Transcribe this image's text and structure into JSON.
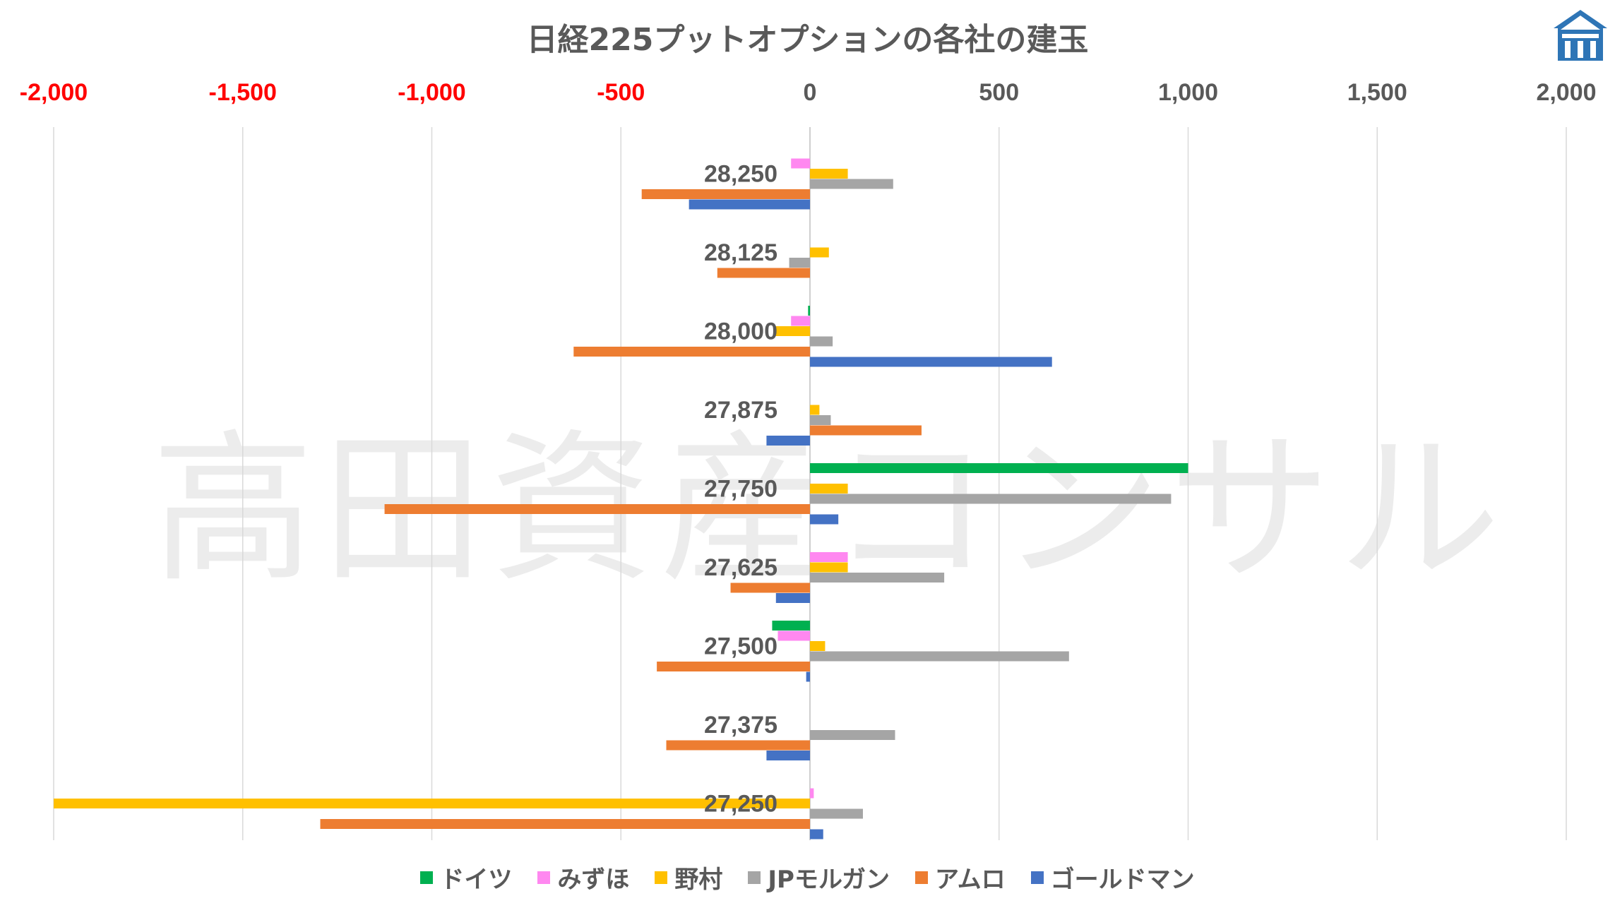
{
  "page": {
    "title": "日経225プットオプションの各社の建玉",
    "watermark": "高田資産コンサル",
    "logo": "house-logo-icon"
  },
  "colors": {
    "ドイツ": "#00B050",
    "みずほ": "#FF88F0",
    "野村": "#FFC000",
    "JPモルガン": "#A5A5A5",
    "アムロ": "#ED7D31",
    "ゴールドマン": "#4472C4",
    "negative_tick": "#FF0000",
    "positive_tick": "#595959",
    "grid": "#D9D9D9"
  },
  "chart_data": {
    "type": "bar",
    "orientation": "horizontal",
    "title": "日経225プットオプションの各社の建玉",
    "xlim": [
      -2000,
      2000
    ],
    "x_ticks": [
      -2000,
      -1500,
      -1000,
      -500,
      0,
      500,
      1000,
      1500,
      2000
    ],
    "x_tick_labels": [
      "-2,000",
      "-1,500",
      "-1,000",
      "-500",
      "0",
      "500",
      "1,000",
      "1,500",
      "2,000"
    ],
    "x_axis_position": "top",
    "grid": true,
    "legend_position": "bottom",
    "categories": [
      "28,250",
      "28,125",
      "28,000",
      "27,875",
      "27,750",
      "27,625",
      "27,500",
      "27,375",
      "27,250"
    ],
    "series": [
      {
        "name": "ドイツ",
        "values": [
          0,
          0,
          -5,
          0,
          1000,
          0,
          -100,
          0,
          0
        ]
      },
      {
        "name": "みずほ",
        "values": [
          -50,
          0,
          -50,
          0,
          0,
          100,
          -85,
          0,
          10
        ]
      },
      {
        "name": "野村",
        "values": [
          100,
          50,
          -95,
          25,
          100,
          100,
          40,
          0,
          -2000
        ]
      },
      {
        "name": "JPモルガン",
        "values": [
          220,
          -55,
          60,
          55,
          955,
          355,
          685,
          225,
          140
        ]
      },
      {
        "name": "アムロ",
        "values": [
          -445,
          -245,
          -625,
          295,
          -1125,
          -210,
          -405,
          -380,
          -1295
        ]
      },
      {
        "name": "ゴールドマン",
        "values": [
          -320,
          0,
          640,
          -115,
          75,
          -90,
          -10,
          -115,
          35
        ]
      }
    ]
  }
}
